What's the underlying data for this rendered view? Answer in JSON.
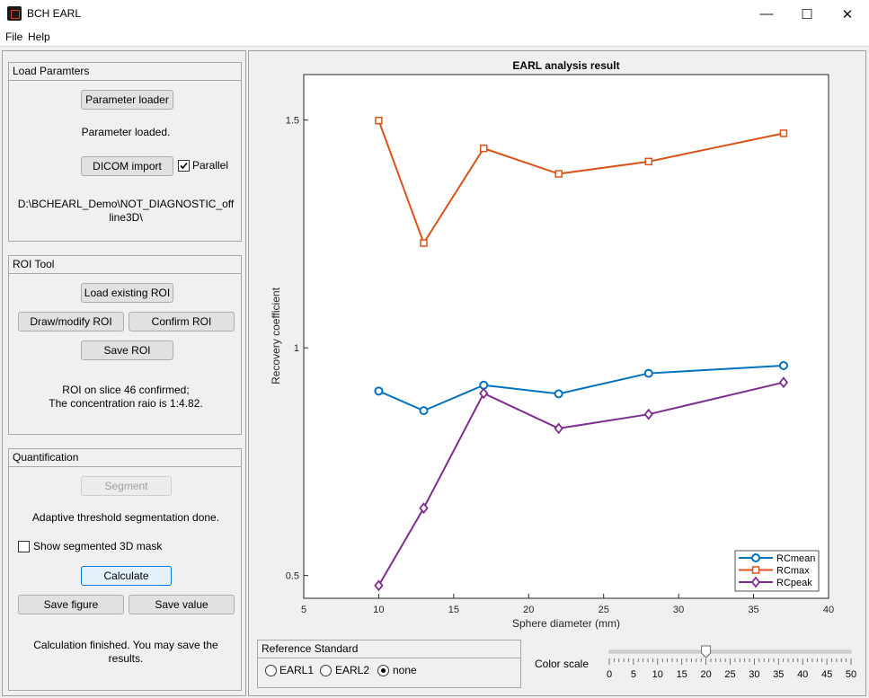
{
  "window": {
    "title": "BCH EARL",
    "minimize": "—",
    "maximize": "☐",
    "close": "✕"
  },
  "menu": {
    "file": "File",
    "help": "Help"
  },
  "load_params": {
    "title": "Load Paramters",
    "parameter_loader_btn": "Parameter loader",
    "status": "Parameter loaded.",
    "dicom_import_btn": "DICOM import",
    "parallel_label": "Parallel",
    "parallel_checked": true,
    "path_line1": "D:\\BCHEARL_Demo\\NOT_DIAGNOSTIC_off",
    "path_line2": "line3D\\"
  },
  "roi_tool": {
    "title": "ROI Tool",
    "load_existing_btn": "Load existing ROI",
    "draw_modify_btn": "Draw/modify ROI",
    "confirm_btn": "Confirm ROI",
    "save_btn": "Save ROI",
    "status_line1": "ROI on slice 46 confirmed;",
    "status_line2": "The concentration raio is 1:4.82."
  },
  "quantification": {
    "title": "Quantification",
    "segment_btn": "Segment",
    "segment_status": "Adaptive threshold segmentation done.",
    "show_mask_label": "Show segmented 3D mask",
    "show_mask_checked": false,
    "calculate_btn": "Calculate",
    "save_figure_btn": "Save figure",
    "save_value_btn": "Save value",
    "calc_status_line1": "Calculation finished. You may save the",
    "calc_status_line2": "results."
  },
  "reference": {
    "title": "Reference Standard",
    "options": [
      "EARL1",
      "EARL2",
      "none"
    ],
    "selected": "none"
  },
  "color_scale": {
    "label": "Color scale",
    "min": 0,
    "max": 50,
    "value": 20,
    "ticks": [
      "0",
      "5",
      "10",
      "15",
      "20",
      "25",
      "30",
      "35",
      "40",
      "45",
      "50"
    ]
  },
  "chart_data": {
    "type": "line",
    "title": "EARL analysis result",
    "xlabel": "Sphere diameter (mm)",
    "ylabel": "Recovery coefficient",
    "xlim": [
      5,
      40
    ],
    "ylim": [
      0.45,
      1.6
    ],
    "xticks": [
      "5",
      "10",
      "15",
      "20",
      "25",
      "30",
      "35",
      "40"
    ],
    "yticks": [
      {
        "v": 0.5,
        "label": "0.5"
      },
      {
        "v": 1,
        "label": "1"
      },
      {
        "v": 1.5,
        "label": "1.5"
      }
    ],
    "x": [
      10,
      13,
      17,
      22,
      28,
      37
    ],
    "series": [
      {
        "name": "RCmean",
        "color": "#0072bd",
        "marker": "circle",
        "values": [
          0.905,
          0.862,
          0.918,
          0.899,
          0.944,
          0.961
        ]
      },
      {
        "name": "RCmax",
        "color": "#d95319",
        "marker": "square",
        "values": [
          1.499,
          1.23,
          1.438,
          1.382,
          1.409,
          1.471
        ]
      },
      {
        "name": "RCpeak",
        "color": "#7e2f8e",
        "marker": "diamond",
        "values": [
          0.478,
          0.648,
          0.9,
          0.823,
          0.854,
          0.924
        ]
      }
    ],
    "legend_position": "bottom-right",
    "grid": false
  }
}
